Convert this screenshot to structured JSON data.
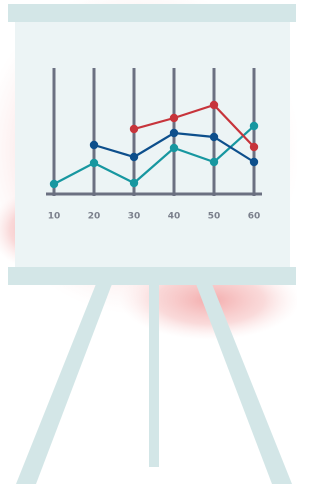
{
  "chart_data": {
    "type": "line",
    "x": [
      10,
      20,
      30,
      40,
      50,
      60
    ],
    "series": [
      {
        "color": "#1797a0",
        "values": [
          10,
          31,
          11,
          46,
          32,
          68
        ]
      },
      {
        "color": "#0d4f8c",
        "values": [
          null,
          49,
          37,
          61,
          57,
          32
        ]
      },
      {
        "color": "#c7343b",
        "values": [
          null,
          null,
          65,
          76,
          89,
          47
        ]
      }
    ],
    "xlim": [
      8,
      62
    ],
    "xticks": [
      10,
      20,
      30,
      40,
      50,
      60
    ],
    "ylim": [
      0,
      130
    ],
    "grid": true
  }
}
